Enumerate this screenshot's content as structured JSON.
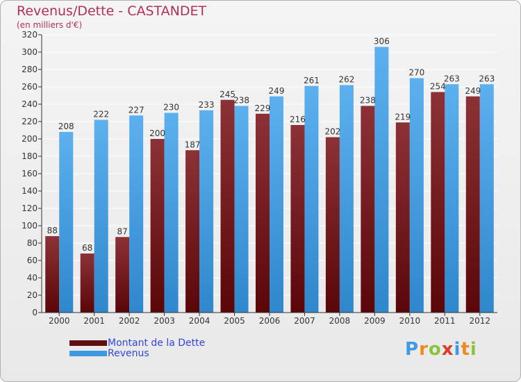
{
  "header": {
    "title": "Revenus/Dette - CASTANDET",
    "subtitle": "(en milliers d'€)"
  },
  "colors": {
    "dette": "#7a1a1f",
    "revenus": "#3d9ae0",
    "axis": "#333333",
    "grid": "#ffffff"
  },
  "legend": {
    "items": [
      {
        "label": "Montant de la Dette",
        "color": "#5e0f12"
      },
      {
        "label": "Revenus",
        "color": "#3d9ae0"
      }
    ]
  },
  "logo": {
    "text": "Proxiti",
    "letter_colors": [
      "#3d9ae0",
      "#f08a1e",
      "#8cc43c",
      "#e23a2a",
      "#3d9ae0",
      "#f08a1e",
      "#8cc43c"
    ]
  },
  "chart_data": {
    "type": "bar",
    "categories": [
      "2000",
      "2001",
      "2002",
      "2003",
      "2004",
      "2005",
      "2006",
      "2007",
      "2008",
      "2009",
      "2010",
      "2011",
      "2012"
    ],
    "series": [
      {
        "name": "Montant de la Dette",
        "values": [
          88,
          68,
          87,
          200,
          187,
          245,
          229,
          216,
          202,
          238,
          219,
          254,
          249
        ]
      },
      {
        "name": "Revenus",
        "values": [
          208,
          222,
          227,
          230,
          233,
          238,
          249,
          261,
          262,
          306,
          270,
          263,
          263
        ]
      }
    ],
    "ylim": [
      0,
      320
    ],
    "yticks": [
      0,
      20,
      40,
      60,
      80,
      100,
      120,
      140,
      160,
      180,
      200,
      220,
      240,
      260,
      280,
      300,
      320
    ],
    "grid": true,
    "legend_position": "bottom-left"
  }
}
